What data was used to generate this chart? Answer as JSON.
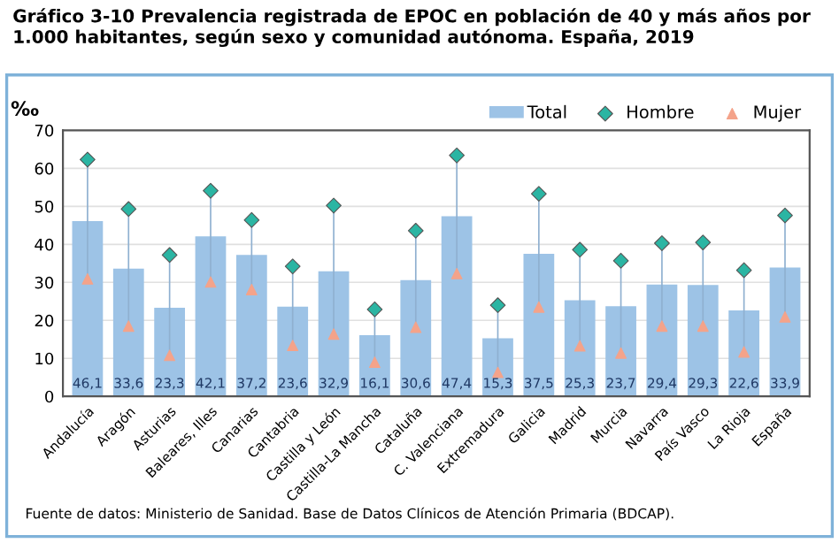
{
  "chart_data": {
    "type": "bar",
    "title": "Gráfico 3-10 Prevalencia registrada de EPOC en población de 40 y más años por 1.000 habitantes, según sexo y comunidad autónoma. España, 2019",
    "ylabel": "‰",
    "categories": [
      "Andalucía",
      "Aragón",
      "Asturias",
      "Baleares, Illes",
      "Canarias",
      "Cantabria",
      "Castilla y León",
      "Castilla-La Mancha",
      "Cataluña",
      "C. Valenciana",
      "Extremadura",
      "Galicia",
      "Madrid",
      "Murcia",
      "Navarra",
      "País Vasco",
      "La Rioja",
      "España"
    ],
    "series": [
      {
        "name": "Total",
        "color": "#9dc3e6",
        "values": [
          46.1,
          33.6,
          23.3,
          42.1,
          37.2,
          23.6,
          32.9,
          16.1,
          30.6,
          47.4,
          15.3,
          37.5,
          25.3,
          23.7,
          29.4,
          29.3,
          22.6,
          33.9
        ],
        "value_labels": [
          "46,1",
          "33,6",
          "23,3",
          "42,1",
          "37,2",
          "23,6",
          "32,9",
          "16,1",
          "30,6",
          "47,4",
          "15,3",
          "37,5",
          "25,3",
          "23,7",
          "29,4",
          "29,3",
          "22,6",
          "33,9"
        ]
      },
      {
        "name": "Hombre",
        "type": "scatter",
        "marker": "diamond",
        "color": "#2bb5a3",
        "values": [
          62.3,
          49.3,
          37.2,
          54.1,
          46.4,
          34.2,
          50.2,
          22.9,
          43.6,
          63.4,
          24.0,
          53.3,
          38.6,
          35.7,
          40.3,
          40.5,
          33.2,
          47.6
        ]
      },
      {
        "name": "Mujer",
        "type": "scatter",
        "marker": "triangle",
        "color": "#f4a38a",
        "values": [
          30.9,
          18.5,
          10.8,
          30.1,
          28.1,
          13.4,
          16.4,
          9.0,
          18.2,
          32.3,
          6.3,
          23.5,
          13.3,
          11.4,
          18.5,
          18.5,
          11.7,
          20.9
        ]
      }
    ],
    "ylim": [
      0,
      70
    ],
    "yticks": [
      0,
      10,
      20,
      30,
      40,
      50,
      60,
      70
    ],
    "grid": "y",
    "legend": "top right",
    "annotations": [
      "Fuente de datos: Ministerio de Sanidad. Base de Datos Clínicos de Atención Primaria (BDCAP)."
    ]
  }
}
